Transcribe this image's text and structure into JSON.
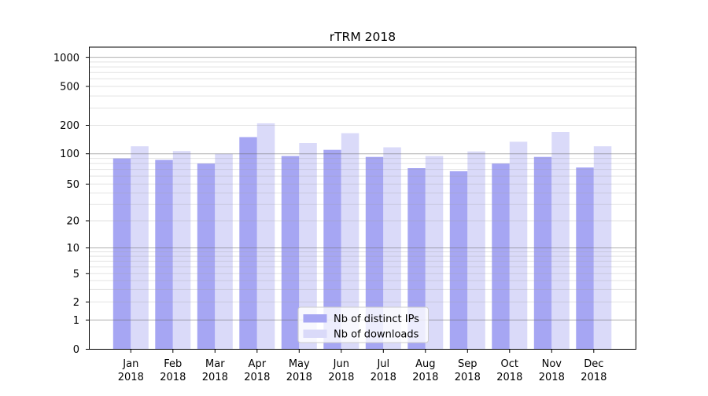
{
  "chart_data": {
    "type": "bar",
    "title": "rTRM 2018",
    "x_year": "2018",
    "categories": [
      "Jan",
      "Feb",
      "Mar",
      "Apr",
      "May",
      "Jun",
      "Jul",
      "Aug",
      "Sep",
      "Oct",
      "Nov",
      "Dec"
    ],
    "series": [
      {
        "name": "Nb of distinct IPs",
        "color": "#a6a6f3",
        "values": [
          90,
          87,
          80,
          150,
          95,
          110,
          93,
          72,
          67,
          80,
          93,
          73
        ]
      },
      {
        "name": "Nb of downloads",
        "color": "#dadaf9",
        "values": [
          120,
          107,
          100,
          210,
          130,
          165,
          117,
          95,
          106,
          134,
          170,
          120
        ]
      }
    ],
    "xlabel": "",
    "ylabel": "",
    "yscale": "symlog",
    "y_tick_values": [
      0,
      1,
      2,
      5,
      10,
      20,
      50,
      100,
      200,
      500,
      1000
    ],
    "ylim": [
      0,
      1300
    ],
    "grid": true,
    "legend_position": "lower center",
    "colors": {
      "major_grid": "#b5b5b5",
      "minor_grid": "#ebebeb",
      "axis": "#000000",
      "legend_border": "#cccccc",
      "legend_background": "rgba(255,255,255,0.8)"
    }
  }
}
